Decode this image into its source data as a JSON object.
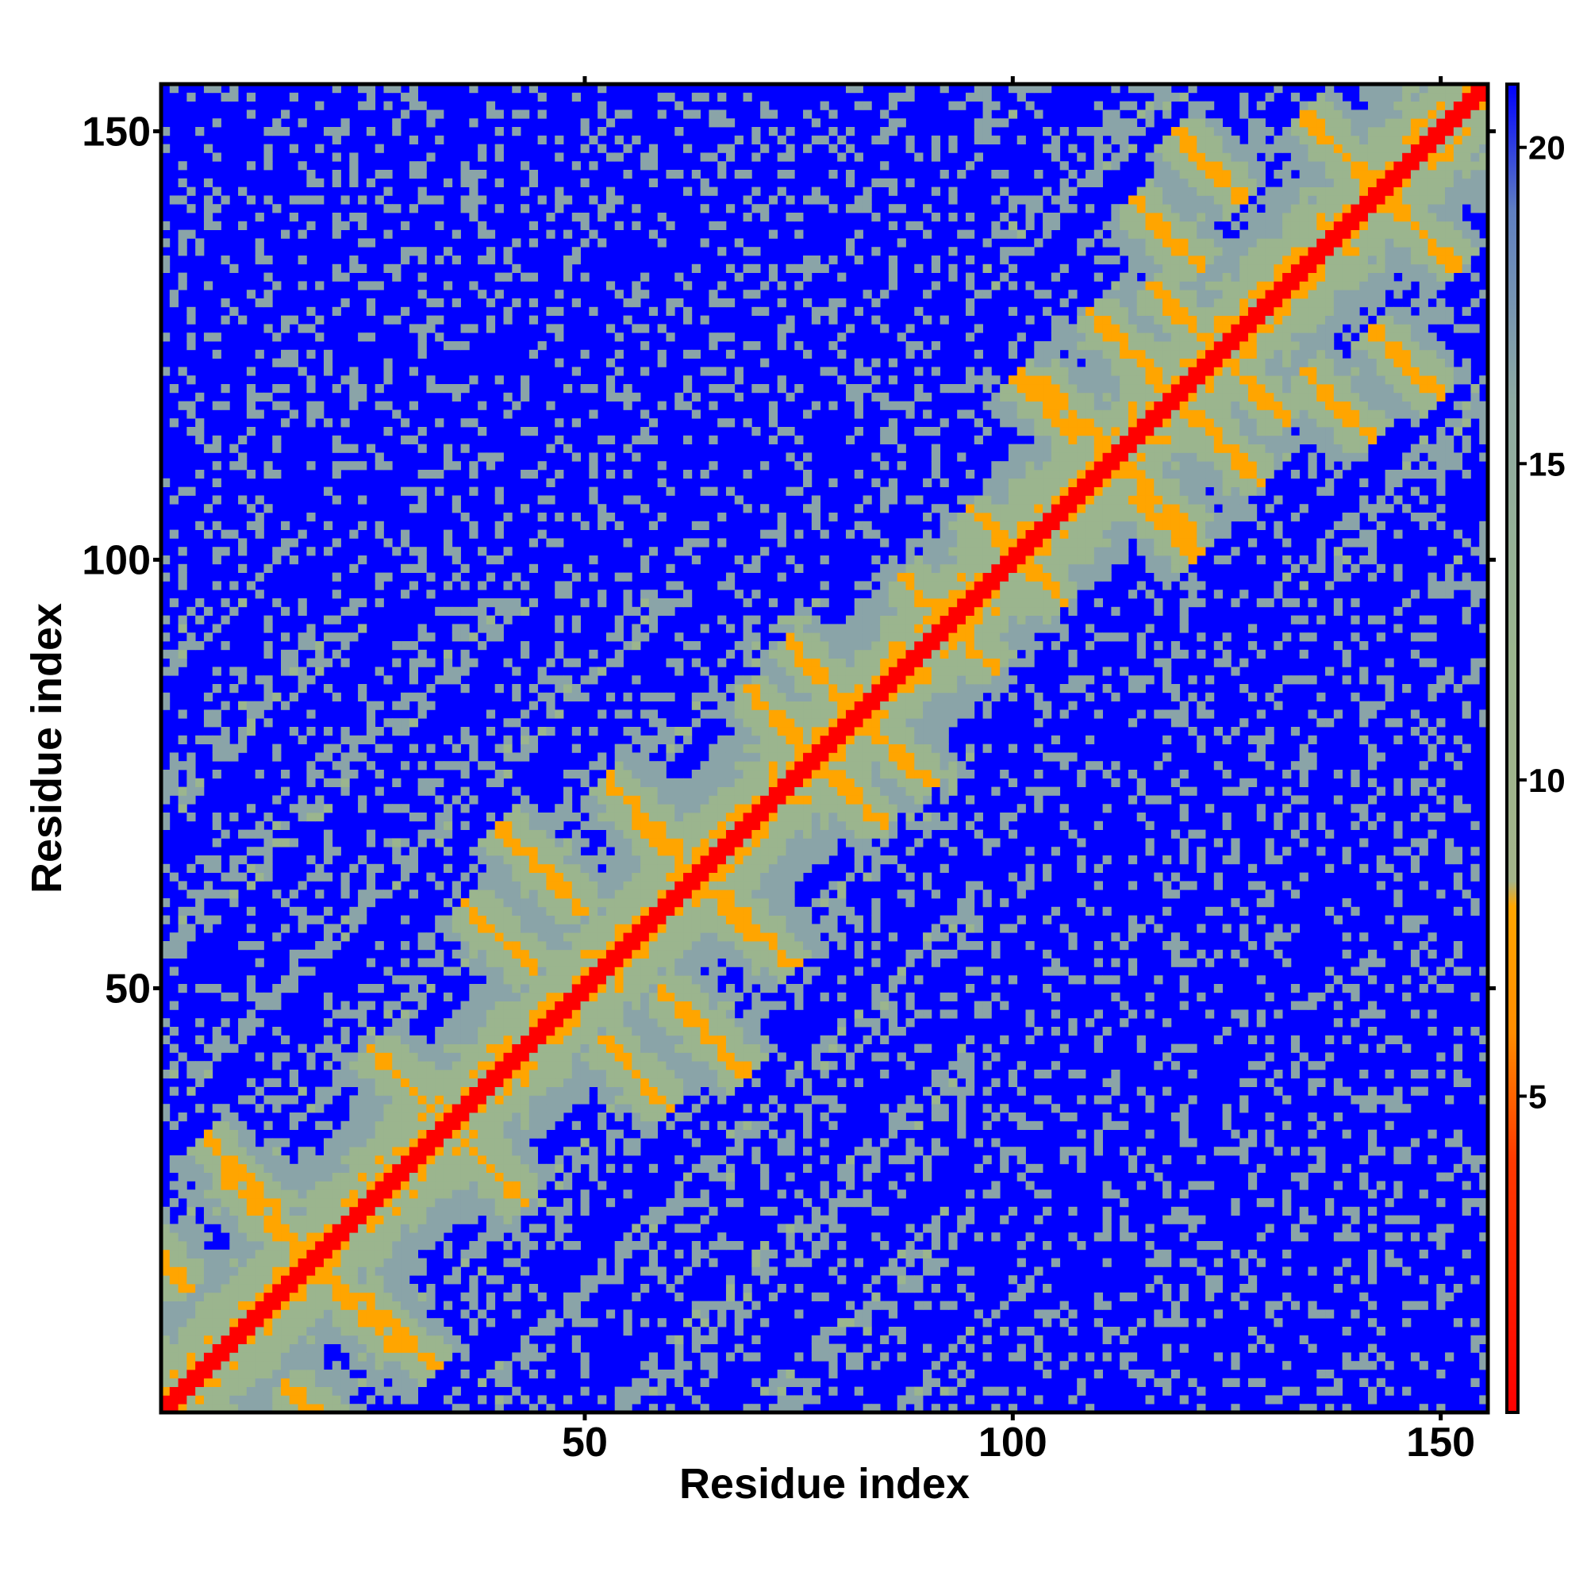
{
  "chart_data": {
    "type": "heatmap",
    "title": "",
    "xlabel": "Residue index",
    "ylabel": "Residue index",
    "n_residues": 155,
    "xlim": [
      1,
      155
    ],
    "ylim": [
      1,
      155
    ],
    "x_ticks": [
      50,
      100,
      150
    ],
    "y_ticks": [
      50,
      100,
      150
    ],
    "colorbar": {
      "range": [
        0,
        21
      ],
      "ticks": [
        5,
        10,
        15,
        20
      ],
      "stops": [
        {
          "value": 0,
          "color": "#ff0000"
        },
        {
          "value": 4,
          "color": "#ff3a00"
        },
        {
          "value": 6,
          "color": "#ff8c00"
        },
        {
          "value": 8,
          "color": "#ffa500"
        },
        {
          "value": 8.4,
          "color": "#a3b38a"
        },
        {
          "value": 12,
          "color": "#9bb58e"
        },
        {
          "value": 16,
          "color": "#8eaaa2"
        },
        {
          "value": 19,
          "color": "#5f7fc0"
        },
        {
          "value": 21,
          "color": "#0000ff"
        }
      ]
    },
    "cutoff_value": 21,
    "colors": {
      "diagonal": "#ff0000",
      "contact": "#ffa500",
      "near": "#9bb58e",
      "mid": "#8aa4a8",
      "far": "#0000ff"
    },
    "structure": {
      "domains": [
        [
          1,
          95
        ],
        [
          96,
          155
        ]
      ],
      "diagonal_width": 1.6,
      "contact_ladders": [
        {
          "type": "anti",
          "center": [
            14,
            22
          ],
          "length": 12
        },
        {
          "type": "anti",
          "center": [
            30,
            38
          ],
          "length": 10
        },
        {
          "type": "anti",
          "center": [
            10,
            28
          ],
          "length": 9
        },
        {
          "type": "anti",
          "center": [
            45,
            64
          ],
          "length": 10
        },
        {
          "type": "anti",
          "center": [
            57,
            70
          ],
          "length": 9
        },
        {
          "type": "anti",
          "center": [
            60,
            66
          ],
          "length": 8
        },
        {
          "type": "anti",
          "center": [
            74,
            80
          ],
          "length": 10
        },
        {
          "type": "anti",
          "center": [
            78,
            86
          ],
          "length": 9
        },
        {
          "type": "anti",
          "center": [
            90,
            95
          ],
          "length": 6
        },
        {
          "type": "anti",
          "center": [
            108,
            116
          ],
          "length": 10
        },
        {
          "type": "anti",
          "center": [
            114,
            124
          ],
          "length": 10
        },
        {
          "type": "anti",
          "center": [
            120,
            128
          ],
          "length": 8
        },
        {
          "type": "anti",
          "center": [
            118,
            138
          ],
          "length": 8
        },
        {
          "type": "anti",
          "center": [
            123,
            146
          ],
          "length": 8
        },
        {
          "type": "anti",
          "center": [
            1,
            18
          ],
          "length": 6
        },
        {
          "type": "anti",
          "center": [
            40,
            56
          ],
          "length": 8
        },
        {
          "type": "anti",
          "center": [
            104,
            118
          ],
          "length": 7
        },
        {
          "type": "anti",
          "center": [
            138,
            148
          ],
          "length": 8
        },
        {
          "type": "anti",
          "center": [
            98,
            103
          ],
          "length": 6
        }
      ]
    }
  }
}
